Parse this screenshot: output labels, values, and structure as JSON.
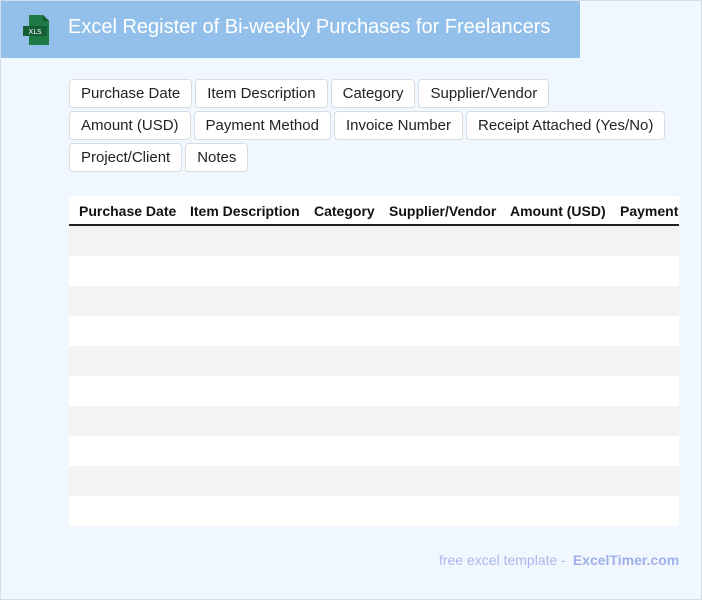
{
  "header": {
    "title": "Excel Register of Bi-weekly Purchases for Freelancers",
    "icon": "xls-file-icon",
    "icon_label": "XLS"
  },
  "fields": [
    "Purchase Date",
    "Item Description",
    "Category",
    "Supplier/Vendor",
    "Amount (USD)",
    "Payment Method",
    "Invoice Number",
    "Receipt Attached (Yes/No)",
    "Project/Client",
    "Notes"
  ],
  "table": {
    "columns": [
      "Purchase Date",
      "Item Description",
      "Category",
      "Supplier/Vendor",
      "Amount (USD)",
      "Payment"
    ],
    "row_count": 10
  },
  "footer": {
    "text": "free excel template -",
    "brand": "ExcelTimer.com"
  },
  "colors": {
    "header": "#92c0ea",
    "background": "#f0f7ff",
    "icon": "#1d7a45"
  }
}
